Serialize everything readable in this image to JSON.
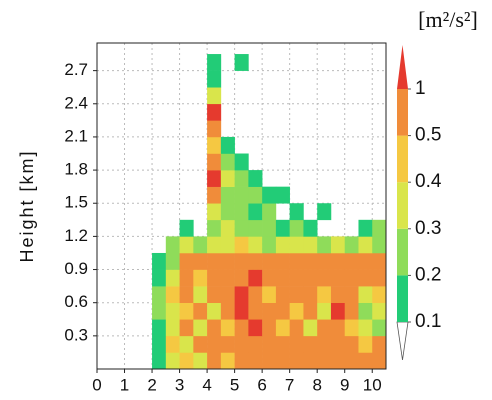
{
  "chart_data": {
    "type": "heatmap",
    "ylabel": "Height [km]",
    "xlim": [
      0,
      10.5
    ],
    "ylim": [
      0,
      2.95
    ],
    "xticks": [
      0,
      1,
      2,
      3,
      4,
      5,
      6,
      7,
      8,
      9,
      10
    ],
    "yticks": [
      0.3,
      0.6,
      0.9,
      1.2,
      1.5,
      1.8,
      2.1,
      2.4,
      2.7
    ],
    "grid": true,
    "xbins": [
      0,
      0.5,
      1,
      1.5,
      2,
      2.5,
      3,
      3.5,
      4,
      4.5,
      5,
      5.5,
      6,
      6.5,
      7,
      7.5,
      8,
      8.5,
      9,
      9.5,
      10,
      10.5
    ],
    "ybins": [
      0,
      0.15,
      0.3,
      0.45,
      0.6,
      0.75,
      0.9,
      1.05,
      1.2,
      1.35,
      1.5,
      1.65,
      1.8,
      1.95,
      2.1,
      2.25,
      2.4,
      2.55,
      2.7,
      2.85
    ],
    "z": [
      [
        null,
        null,
        null,
        null,
        0.15,
        0.3,
        0.4,
        0.35,
        0.5,
        0.4,
        0.6,
        0.5,
        0.6,
        0.7,
        0.6,
        0.8,
        0.5,
        0.7,
        0.6,
        0.9,
        0.7
      ],
      [
        null,
        null,
        null,
        null,
        0.15,
        0.4,
        0.3,
        0.5,
        0.6,
        0.5,
        0.7,
        0.6,
        0.7,
        0.8,
        0.7,
        0.6,
        0.5,
        0.9,
        0.6,
        0.4,
        0.8
      ],
      [
        null,
        null,
        null,
        null,
        0.15,
        0.35,
        0.5,
        0.3,
        0.6,
        0.4,
        0.8,
        1.2,
        0.5,
        0.4,
        0.6,
        0.3,
        0.5,
        0.7,
        0.4,
        0.3,
        0.2
      ],
      [
        null,
        null,
        null,
        null,
        0.2,
        0.3,
        0.45,
        0.6,
        0.35,
        0.5,
        1.2,
        0.8,
        0.5,
        0.6,
        0.4,
        0.5,
        0.3,
        1.1,
        0.5,
        0.25,
        0.3
      ],
      [
        null,
        null,
        null,
        null,
        0.2,
        0.4,
        0.6,
        0.3,
        0.5,
        0.7,
        1.3,
        0.7,
        0.4,
        0.5,
        0.6,
        0.7,
        0.4,
        0.8,
        0.6,
        0.3,
        0.4
      ],
      [
        null,
        null,
        null,
        null,
        0.15,
        0.3,
        0.7,
        0.4,
        0.6,
        0.5,
        0.9,
        1.1,
        0.6,
        0.7,
        0.6,
        0.5,
        0.6,
        0.7,
        0.5,
        0.6,
        0.5
      ],
      [
        null,
        null,
        null,
        null,
        0.15,
        0.25,
        0.6,
        0.5,
        0.7,
        0.6,
        0.7,
        0.8,
        0.5,
        0.6,
        0.7,
        0.6,
        0.7,
        0.6,
        0.6,
        0.5,
        0.6
      ],
      [
        null,
        null,
        null,
        null,
        null,
        0.2,
        0.3,
        0.25,
        0.35,
        0.3,
        0.4,
        0.3,
        0.25,
        0.35,
        0.3,
        0.3,
        0.25,
        0.3,
        0.2,
        0.3,
        0.2
      ],
      [
        null,
        null,
        null,
        null,
        null,
        null,
        0.15,
        null,
        0.2,
        0.3,
        0.25,
        0.2,
        0.2,
        0.15,
        0.2,
        0.15,
        null,
        null,
        null,
        0.15,
        0.2
      ],
      [
        null,
        null,
        null,
        null,
        null,
        null,
        null,
        null,
        0.3,
        0.2,
        0.2,
        0.15,
        0.2,
        null,
        0.15,
        null,
        0.15,
        null,
        null,
        null,
        null
      ],
      [
        null,
        null,
        null,
        null,
        null,
        null,
        null,
        null,
        0.5,
        0.25,
        0.2,
        0.2,
        0.15,
        0.15,
        null,
        null,
        null,
        null,
        null,
        null,
        null
      ],
      [
        null,
        null,
        null,
        null,
        null,
        null,
        null,
        null,
        1.1,
        0.3,
        0.2,
        0.15,
        null,
        null,
        null,
        null,
        null,
        null,
        null,
        null,
        null
      ],
      [
        null,
        null,
        null,
        null,
        null,
        null,
        null,
        null,
        0.6,
        0.2,
        0.15,
        null,
        null,
        null,
        null,
        null,
        null,
        null,
        null,
        null,
        null
      ],
      [
        null,
        null,
        null,
        null,
        null,
        null,
        null,
        null,
        0.4,
        0.15,
        null,
        null,
        null,
        null,
        null,
        null,
        null,
        null,
        null,
        null,
        null
      ],
      [
        null,
        null,
        null,
        null,
        null,
        null,
        null,
        null,
        0.6,
        null,
        null,
        null,
        null,
        null,
        null,
        null,
        null,
        null,
        null,
        null,
        null
      ],
      [
        null,
        null,
        null,
        null,
        null,
        null,
        null,
        null,
        1.2,
        null,
        null,
        null,
        null,
        null,
        null,
        null,
        null,
        null,
        null,
        null,
        null
      ],
      [
        null,
        null,
        null,
        null,
        null,
        null,
        null,
        null,
        0.3,
        null,
        null,
        null,
        null,
        null,
        null,
        null,
        null,
        null,
        null,
        null,
        null
      ],
      [
        null,
        null,
        null,
        null,
        null,
        null,
        null,
        null,
        0.15,
        null,
        null,
        null,
        null,
        null,
        null,
        null,
        null,
        null,
        null,
        null,
        null
      ],
      [
        null,
        null,
        null,
        null,
        null,
        null,
        null,
        null,
        0.1,
        null,
        0.15,
        null,
        null,
        null,
        null,
        null,
        null,
        null,
        null,
        null,
        null
      ]
    ],
    "colorbar": {
      "label": "[m²/s²]",
      "levels": [
        0.1,
        0.2,
        0.3,
        0.4,
        0.5,
        1
      ],
      "colors": [
        "#ffffff",
        "#22cc77",
        "#8fdc5a",
        "#d9e54b",
        "#f5c842",
        "#f08c3a",
        "#e53a2e"
      ]
    }
  }
}
